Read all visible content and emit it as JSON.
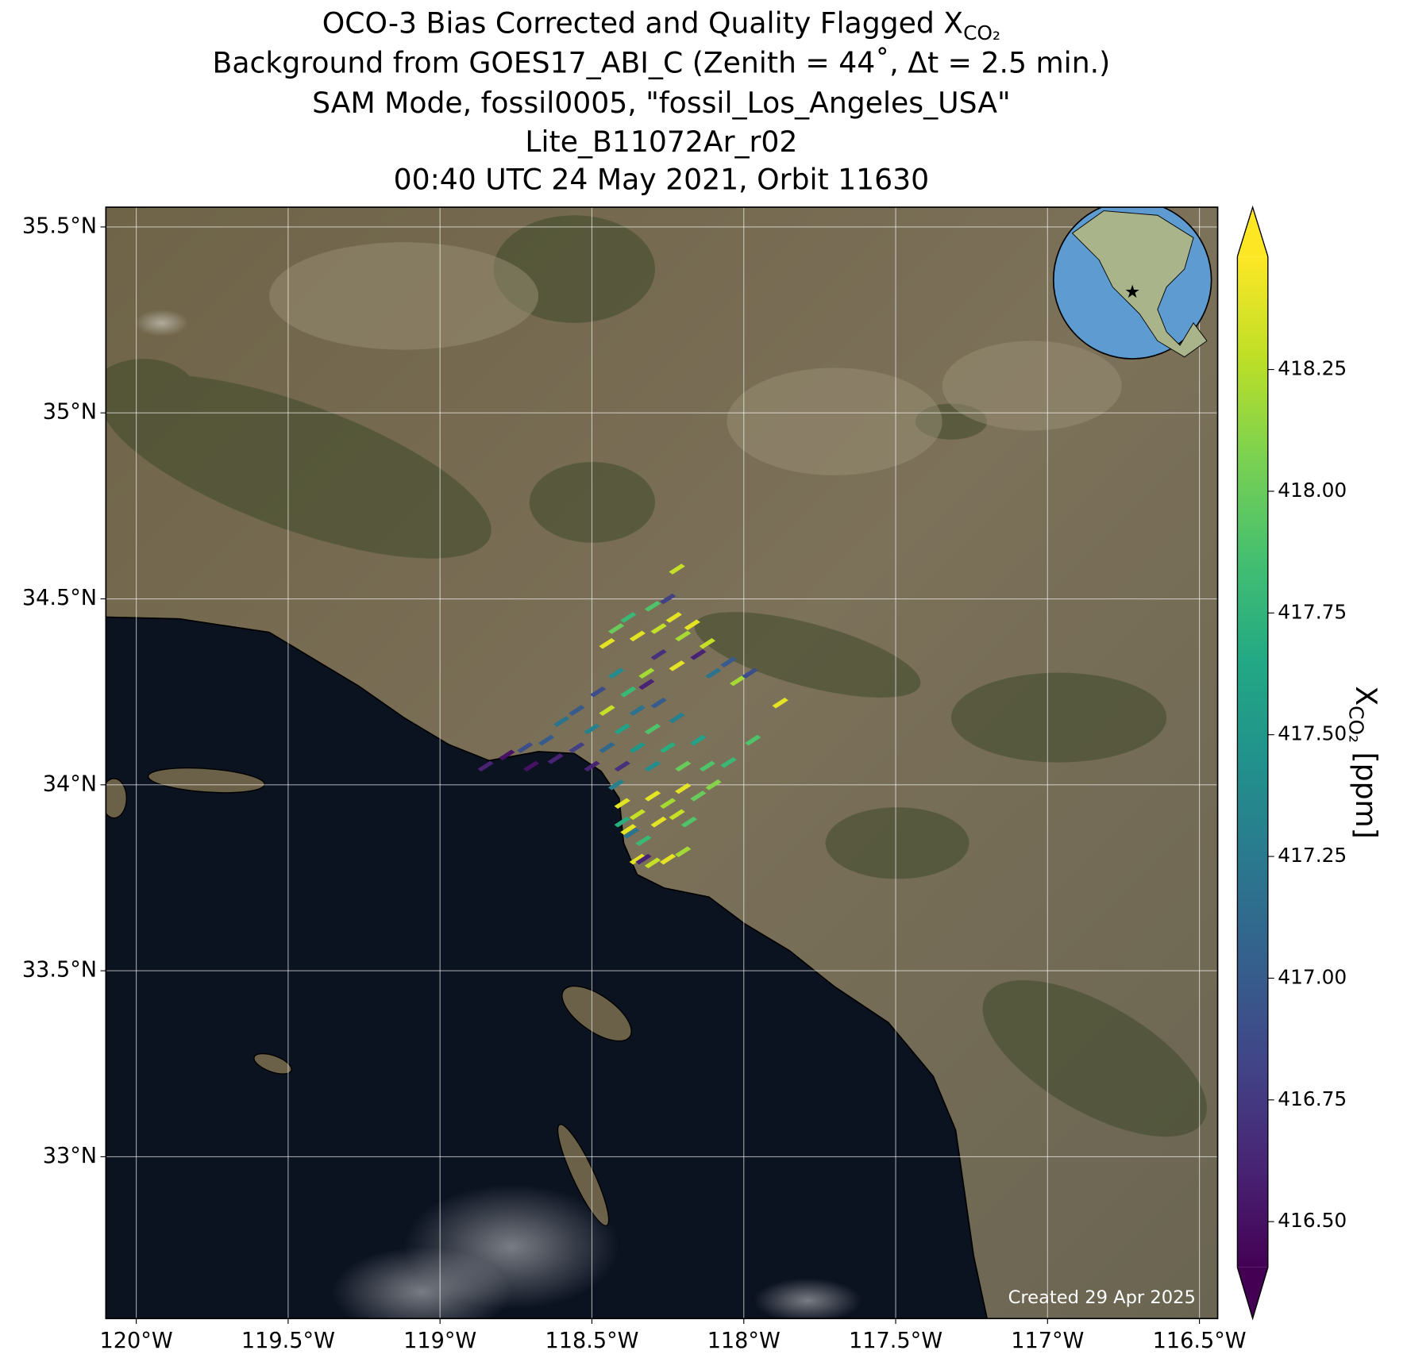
{
  "chart_data": {
    "type": "map",
    "title_lines": [
      "OCO-3 Bias Corrected and Quality Flagged X",
      "Background from GOES17_ABI_C (Zenith = 44˚, Δt =  2.5 min.)",
      "SAM Mode, fossil0005, \"fossil_Los_Angeles_USA\"",
      "Lite_B11072Ar_r02",
      "00:40 UTC 24 May 2021, Orbit 11630"
    ],
    "title_subscript": "CO₂",
    "xlim": [
      -120.1,
      -116.44
    ],
    "ylim": [
      32.565,
      35.553
    ],
    "xticks": [
      {
        "value": -120,
        "label": "120°W"
      },
      {
        "value": -119.5,
        "label": "119.5°W"
      },
      {
        "value": -119,
        "label": "119°W"
      },
      {
        "value": -118.5,
        "label": "118.5°W"
      },
      {
        "value": -118,
        "label": "118°W"
      },
      {
        "value": -117.5,
        "label": "117.5°W"
      },
      {
        "value": -117,
        "label": "117°W"
      },
      {
        "value": -116.5,
        "label": "116.5°W"
      }
    ],
    "yticks": [
      {
        "value": 33,
        "label": "33°N"
      },
      {
        "value": 33.5,
        "label": "33.5°N"
      },
      {
        "value": 34,
        "label": "34°N"
      },
      {
        "value": 34.5,
        "label": "34.5°N"
      },
      {
        "value": 35,
        "label": "35°N"
      },
      {
        "value": 35.5,
        "label": "35.5°N"
      }
    ],
    "grid": true,
    "colormap": "viridis",
    "clim": [
      416.406,
      418.482
    ],
    "colorbar_extend": "both",
    "cticks": [
      {
        "value": 416.5,
        "label": "416.50"
      },
      {
        "value": 416.75,
        "label": "416.75"
      },
      {
        "value": 417,
        "label": "417.00"
      },
      {
        "value": 417.25,
        "label": "417.25"
      },
      {
        "value": 417.5,
        "label": "417.50"
      },
      {
        "value": 417.75,
        "label": "417.75"
      },
      {
        "value": 418,
        "label": "418.00"
      },
      {
        "value": 418.25,
        "label": "418.25"
      }
    ],
    "colorbar_label": "X",
    "colorbar_label_subscript": "CO₂",
    "colorbar_label_suffix": " [ppm]",
    "annotation": "Created 29 Apr 2025",
    "soundings": {
      "lon": [
        -118.85,
        -118.78,
        -118.72,
        -118.7,
        -118.65,
        -118.62,
        -118.6,
        -118.55,
        -118.55,
        -118.5,
        -118.5,
        -118.48,
        -118.45,
        -118.45,
        -118.42,
        -118.4,
        -118.4,
        -118.38,
        -118.35,
        -118.35,
        -118.32,
        -118.3,
        -118.3,
        -118.28,
        -118.25,
        -118.22,
        -118.2,
        -118.15,
        -118.12,
        -118.1,
        -118.05,
        -117.97,
        -117.88,
        -118.4,
        -118.35,
        -118.3,
        -118.25,
        -118.2,
        -118.15,
        -118.38,
        -118.33,
        -118.28,
        -118.22,
        -118.18,
        -118.35,
        -118.3,
        -118.25,
        -118.2,
        -118.4,
        -118.42,
        -118.37,
        -118.33,
        -118.45,
        -118.42,
        -118.38,
        -118.35,
        -118.3,
        -118.28,
        -118.25,
        -118.23,
        -118.22,
        -118.2,
        -118.17,
        -118.15,
        -118.12,
        -118.1,
        -118.05,
        -118.02,
        -117.98,
        -118.28,
        -118.22,
        -118.32
      ],
      "lat": [
        34.05,
        34.08,
        34.1,
        34.05,
        34.12,
        34.07,
        34.17,
        34.1,
        34.2,
        34.15,
        34.05,
        34.25,
        34.1,
        34.2,
        34.3,
        34.15,
        34.05,
        34.25,
        34.2,
        34.1,
        34.3,
        34.15,
        34.05,
        34.22,
        34.1,
        34.18,
        34.05,
        34.12,
        34.05,
        34.0,
        34.06,
        34.12,
        34.22,
        33.95,
        33.92,
        33.97,
        33.95,
        33.99,
        33.97,
        33.88,
        33.85,
        33.9,
        33.92,
        33.9,
        33.8,
        33.79,
        33.8,
        33.82,
        33.9,
        34.0,
        33.87,
        33.8,
        34.38,
        34.42,
        34.45,
        34.4,
        34.48,
        34.42,
        34.5,
        34.45,
        34.58,
        34.4,
        34.43,
        34.35,
        34.38,
        34.3,
        34.33,
        34.28,
        34.3,
        34.35,
        34.32,
        34.27
      ],
      "values": [
        416.6,
        416.5,
        416.9,
        416.5,
        417.0,
        416.6,
        417.2,
        416.8,
        417.0,
        417.3,
        416.6,
        416.9,
        417.1,
        418.3,
        417.4,
        417.6,
        416.7,
        417.8,
        417.2,
        417.5,
        418.2,
        417.9,
        417.4,
        417.0,
        417.7,
        417.3,
        418.0,
        417.6,
        417.9,
        418.1,
        417.8,
        417.9,
        418.4,
        418.4,
        418.3,
        418.4,
        418.2,
        418.4,
        418.0,
        418.4,
        417.8,
        418.4,
        418.3,
        417.9,
        418.4,
        418.3,
        418.4,
        418.2,
        417.7,
        417.3,
        417.2,
        416.6,
        418.4,
        418.0,
        417.8,
        418.4,
        417.9,
        418.3,
        416.8,
        418.4,
        418.3,
        418.2,
        418.4,
        416.6,
        418.3,
        417.2,
        417.0,
        418.2,
        416.9,
        416.7,
        418.4,
        416.6
      ]
    }
  }
}
